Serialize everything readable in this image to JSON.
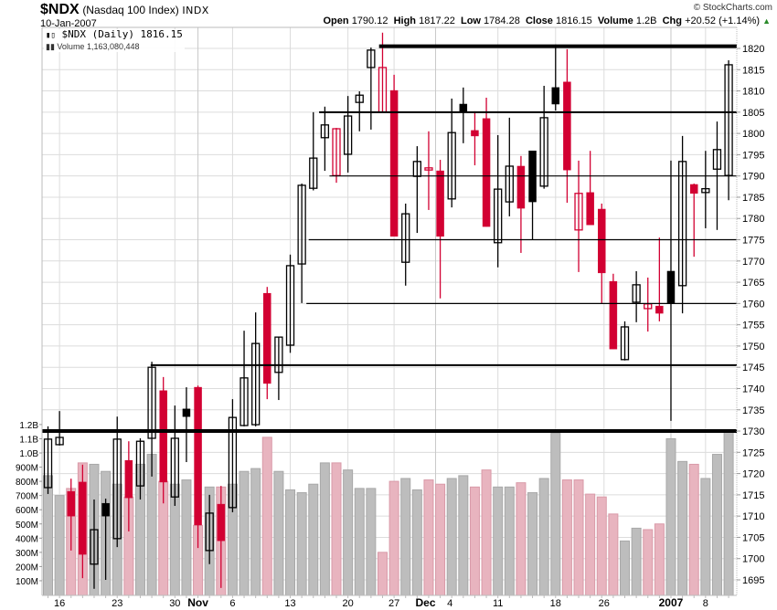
{
  "header": {
    "symbol": "$NDX",
    "description": "(Nasdaq 100 Index)",
    "exchange": "INDX",
    "date": "10-Jan-2007",
    "copyright": "© StockCharts.com",
    "ohlc": {
      "open_label": "Open",
      "open": "1790.12",
      "high_label": "High",
      "high": "1817.22",
      "low_label": "Low",
      "low": "1784.28",
      "close_label": "Close",
      "close": "1816.15",
      "volume_label": "Volume",
      "volume": "1.2B",
      "chg_label": "Chg",
      "chg": "+20.52 (+1.14%)",
      "chg_arrow": "▲"
    }
  },
  "legend": {
    "price_icon": "candlestick-icon",
    "price_text": "$NDX (Daily) 1816.15",
    "volume_icon": "volume-bars-icon",
    "volume_text": "Volume 1,163,080,448"
  },
  "colors": {
    "up": "#000000",
    "down": "#d20032",
    "volume_up": "#bdbdbd",
    "volume_down": "#e8b4bf",
    "grid": "#dcdcdc"
  },
  "chart_data": {
    "type": "candlestick",
    "title": "$NDX (Nasdaq 100 Index) INDX",
    "xlabel": "",
    "ylabel": "",
    "ylim": [
      1692,
      1824
    ],
    "price_ticks": [
      1820,
      1815,
      1810,
      1805,
      1800,
      1795,
      1790,
      1785,
      1780,
      1775,
      1770,
      1765,
      1760,
      1755,
      1750,
      1745,
      1740,
      1735,
      1730,
      1725,
      1720,
      1715,
      1710,
      1705,
      1700,
      1695
    ],
    "volume_ticks": [
      "1.2B",
      "1.1B",
      "1.0B",
      "900M",
      "800M",
      "700M",
      "600M",
      "500M",
      "400M",
      "300M",
      "200M",
      "100M"
    ],
    "volume_tick_values": [
      1.2,
      1.1,
      1.0,
      0.9,
      0.8,
      0.7,
      0.6,
      0.5,
      0.4,
      0.3,
      0.2,
      0.1
    ],
    "x_labels": [
      {
        "label": "16",
        "index": 1,
        "bold": false
      },
      {
        "label": "23",
        "index": 6,
        "bold": false
      },
      {
        "label": "30",
        "index": 11,
        "bold": false
      },
      {
        "label": "Nov",
        "index": 13,
        "bold": true
      },
      {
        "label": "6",
        "index": 16,
        "bold": false
      },
      {
        "label": "13",
        "index": 21,
        "bold": false
      },
      {
        "label": "20",
        "index": 26,
        "bold": false
      },
      {
        "label": "27",
        "index": 30,
        "bold": false
      },
      {
        "label": "Dec",
        "index": 33.6,
        "bold": true
      },
      {
        "label": "4",
        "index": 34.6,
        "bold": false
      },
      {
        "label": "11",
        "index": 39,
        "bold": false
      },
      {
        "label": "18",
        "index": 44,
        "bold": false
      },
      {
        "label": "26",
        "index": 48.2,
        "bold": false
      },
      {
        "label": "2007",
        "index": 54,
        "bold": true
      },
      {
        "label": "8",
        "index": 57,
        "bold": false
      }
    ],
    "legend": [
      "$NDX (Daily) 1816.15",
      "Volume 1,163,080,448"
    ],
    "horizontal_lines": [
      {
        "price": 1820.5,
        "from_index": 28.7,
        "weight": 4
      },
      {
        "price": 1805,
        "from_index": 23.5,
        "weight": 2
      },
      {
        "price": 1790,
        "from_index": 24.4,
        "weight": 1.2
      },
      {
        "price": 1775,
        "from_index": 22.6,
        "weight": 1.2
      },
      {
        "price": 1760,
        "from_index": 22.4,
        "weight": 1.2
      },
      {
        "price": 1745.5,
        "from_index": 8.9,
        "weight": 2
      },
      {
        "price": 1730,
        "from_index": -0.5,
        "weight": 4
      }
    ],
    "candles": [
      {
        "o": 1716.7,
        "h": 1731.1,
        "l": 1715.2,
        "c": 1728.1,
        "style": "hb",
        "vol": 0.84
      },
      {
        "o": 1726.8,
        "h": 1734.7,
        "l": 1726.6,
        "c": 1728.5,
        "style": "hb",
        "vol": 0.7
      },
      {
        "o": 1715.8,
        "h": 1718.8,
        "l": 1701.9,
        "c": 1710.0,
        "style": "fr",
        "vol": 0.75
      },
      {
        "o": 1718.0,
        "h": 1722.1,
        "l": 1695.4,
        "c": 1701.0,
        "style": "fr",
        "vol": 0.93
      },
      {
        "o": 1698.7,
        "h": 1713.9,
        "l": 1692.9,
        "c": 1706.8,
        "style": "hb",
        "vol": 0.92
      },
      {
        "o": 1713.0,
        "h": 1714.1,
        "l": 1695.0,
        "c": 1710.0,
        "style": "fb",
        "vol": 0.87
      },
      {
        "o": 1704.7,
        "h": 1733.4,
        "l": 1702.7,
        "c": 1728.1,
        "style": "hb",
        "vol": 0.78
      },
      {
        "o": 1723.1,
        "h": 1727.6,
        "l": 1706.4,
        "c": 1714.3,
        "style": "fr",
        "vol": 0.69
      },
      {
        "o": 1717.1,
        "h": 1728.3,
        "l": 1713.9,
        "c": 1727.6,
        "style": "hb",
        "vol": 0.92
      },
      {
        "o": 1728.3,
        "h": 1746.3,
        "l": 1719.3,
        "c": 1745.0,
        "style": "hb",
        "vol": 0.99
      },
      {
        "o": 1739.5,
        "h": 1742.7,
        "l": 1713.0,
        "c": 1718.0,
        "style": "fr",
        "vol": 0.8
      },
      {
        "o": 1714.5,
        "h": 1736.0,
        "l": 1712.4,
        "c": 1728.3,
        "style": "hb",
        "vol": 0.78
      },
      {
        "o": 1735.2,
        "h": 1740.3,
        "l": 1722.7,
        "c": 1733.4,
        "style": "fb",
        "vol": 0.81
      },
      {
        "o": 1740.3,
        "h": 1740.7,
        "l": 1702.5,
        "c": 1707.9,
        "style": "fr",
        "vol": 0.49
      },
      {
        "o": 1701.9,
        "h": 1715.0,
        "l": 1698.7,
        "c": 1710.7,
        "style": "hb",
        "vol": 0.76
      },
      {
        "o": 1712.8,
        "h": 1717.1,
        "l": 1693.1,
        "c": 1704.2,
        "style": "fr",
        "vol": 0.76
      },
      {
        "o": 1712.0,
        "h": 1737.5,
        "l": 1710.9,
        "c": 1733.2,
        "style": "hb",
        "vol": 0.78
      },
      {
        "o": 1731.3,
        "h": 1753.6,
        "l": 1731.1,
        "c": 1742.5,
        "style": "hb",
        "vol": 0.87
      },
      {
        "o": 1731.5,
        "h": 1757.9,
        "l": 1731.1,
        "c": 1750.6,
        "style": "hb",
        "vol": 0.89
      },
      {
        "o": 1762.4,
        "h": 1763.9,
        "l": 1737.5,
        "c": 1741.2,
        "style": "fr",
        "vol": 1.11
      },
      {
        "o": 1743.8,
        "h": 1752.1,
        "l": 1737.3,
        "c": 1752.1,
        "style": "hb",
        "vol": 0.87
      },
      {
        "o": 1750.2,
        "h": 1771.5,
        "l": 1748.4,
        "c": 1768.9,
        "style": "hb",
        "vol": 0.74
      },
      {
        "o": 1769.3,
        "h": 1788.2,
        "l": 1760.1,
        "c": 1787.8,
        "style": "hb",
        "vol": 0.72
      },
      {
        "o": 1787.1,
        "h": 1805.0,
        "l": 1786.6,
        "c": 1794.2,
        "style": "hb",
        "vol": 0.78
      },
      {
        "o": 1799.0,
        "h": 1806.3,
        "l": 1791.2,
        "c": 1802.0,
        "style": "hb",
        "vol": 0.93
      },
      {
        "o": 1790.1,
        "h": 1801.3,
        "l": 1788.4,
        "c": 1801.1,
        "style": "hr",
        "vol": 0.93
      },
      {
        "o": 1795.1,
        "h": 1808.8,
        "l": 1790.8,
        "c": 1804.1,
        "style": "hb",
        "vol": 0.88
      },
      {
        "o": 1807.3,
        "h": 1809.9,
        "l": 1800.5,
        "c": 1809.0,
        "style": "hb",
        "vol": 0.75
      },
      {
        "o": 1815.5,
        "h": 1820.2,
        "l": 1800.9,
        "c": 1819.6,
        "style": "hb",
        "vol": 0.75
      },
      {
        "o": 1805.0,
        "h": 1823.7,
        "l": 1805.0,
        "c": 1815.5,
        "style": "hr",
        "vol": 0.3
      },
      {
        "o": 1810.1,
        "h": 1813.8,
        "l": 1775.8,
        "c": 1775.8,
        "style": "fr",
        "vol": 0.8
      },
      {
        "o": 1769.7,
        "h": 1783.5,
        "l": 1764.2,
        "c": 1781.1,
        "style": "hb",
        "vol": 0.82
      },
      {
        "o": 1789.9,
        "h": 1797.0,
        "l": 1776.6,
        "c": 1793.4,
        "style": "hb",
        "vol": 0.74
      },
      {
        "o": 1791.9,
        "h": 1800.5,
        "l": 1782.0,
        "c": 1791.4,
        "style": "hr",
        "vol": 0.81
      },
      {
        "o": 1791.2,
        "h": 1793.8,
        "l": 1761.2,
        "c": 1775.8,
        "style": "fr",
        "vol": 0.78
      },
      {
        "o": 1784.6,
        "h": 1808.2,
        "l": 1782.6,
        "c": 1800.2,
        "style": "hb",
        "vol": 0.82
      },
      {
        "o": 1806.9,
        "h": 1810.8,
        "l": 1797.7,
        "c": 1805.0,
        "style": "fb",
        "vol": 0.84
      },
      {
        "o": 1800.7,
        "h": 1805.2,
        "l": 1792.5,
        "c": 1799.4,
        "style": "fr",
        "vol": 0.76
      },
      {
        "o": 1803.5,
        "h": 1808.4,
        "l": 1778.1,
        "c": 1778.1,
        "style": "fr",
        "vol": 0.88
      },
      {
        "o": 1774.3,
        "h": 1799.6,
        "l": 1768.5,
        "c": 1786.9,
        "style": "hb",
        "vol": 0.76
      },
      {
        "o": 1783.9,
        "h": 1803.7,
        "l": 1780.5,
        "c": 1792.3,
        "style": "hb",
        "vol": 0.76
      },
      {
        "o": 1792.3,
        "h": 1794.7,
        "l": 1771.9,
        "c": 1782.4,
        "style": "fr",
        "vol": 0.79
      },
      {
        "o": 1795.9,
        "h": 1795.9,
        "l": 1774.9,
        "c": 1783.9,
        "style": "fb",
        "vol": 0.72
      },
      {
        "o": 1787.6,
        "h": 1811.2,
        "l": 1787.0,
        "c": 1803.7,
        "style": "hb",
        "vol": 0.82
      },
      {
        "o": 1810.8,
        "h": 1820.9,
        "l": 1805.4,
        "c": 1806.9,
        "style": "fb",
        "vol": 1.14
      },
      {
        "o": 1812.1,
        "h": 1819.8,
        "l": 1783.7,
        "c": 1791.4,
        "style": "fr",
        "vol": 0.81
      },
      {
        "o": 1777.3,
        "h": 1793.6,
        "l": 1767.4,
        "c": 1785.9,
        "style": "hr",
        "vol": 0.81
      },
      {
        "o": 1786.1,
        "h": 1795.9,
        "l": 1778.5,
        "c": 1778.5,
        "style": "fr",
        "vol": 0.71
      },
      {
        "o": 1782.2,
        "h": 1783.5,
        "l": 1759.9,
        "c": 1767.2,
        "style": "fr",
        "vol": 0.69
      },
      {
        "o": 1765.2,
        "h": 1767.0,
        "l": 1749.3,
        "c": 1749.3,
        "style": "fr",
        "vol": 0.57
      },
      {
        "o": 1746.8,
        "h": 1755.8,
        "l": 1746.6,
        "c": 1754.5,
        "style": "hb",
        "vol": 0.38
      },
      {
        "o": 1760.3,
        "h": 1767.6,
        "l": 1755.6,
        "c": 1764.4,
        "style": "hb",
        "vol": 0.47
      },
      {
        "o": 1758.8,
        "h": 1766.1,
        "l": 1753.4,
        "c": 1759.9,
        "style": "hr",
        "vol": 0.46
      },
      {
        "o": 1759.4,
        "h": 1775.5,
        "l": 1755.8,
        "c": 1757.7,
        "style": "fr",
        "vol": 0.5
      },
      {
        "o": 1767.6,
        "h": 1793.6,
        "l": 1732.4,
        "c": 1760.1,
        "style": "fb",
        "vol": 1.1
      },
      {
        "o": 1764.2,
        "h": 1799.4,
        "l": 1757.7,
        "c": 1793.4,
        "style": "hb",
        "vol": 0.94
      },
      {
        "o": 1788.0,
        "h": 1788.2,
        "l": 1771.0,
        "c": 1785.9,
        "style": "fr",
        "vol": 0.92
      },
      {
        "o": 1786.1,
        "h": 1795.9,
        "l": 1777.7,
        "c": 1787.0,
        "style": "hb",
        "vol": 0.82
      },
      {
        "o": 1791.6,
        "h": 1802.8,
        "l": 1777.3,
        "c": 1796.2,
        "style": "hb",
        "vol": 0.99
      },
      {
        "o": 1790.12,
        "h": 1817.22,
        "l": 1784.28,
        "c": 1816.15,
        "style": "hb",
        "vol": 1.16
      }
    ]
  }
}
